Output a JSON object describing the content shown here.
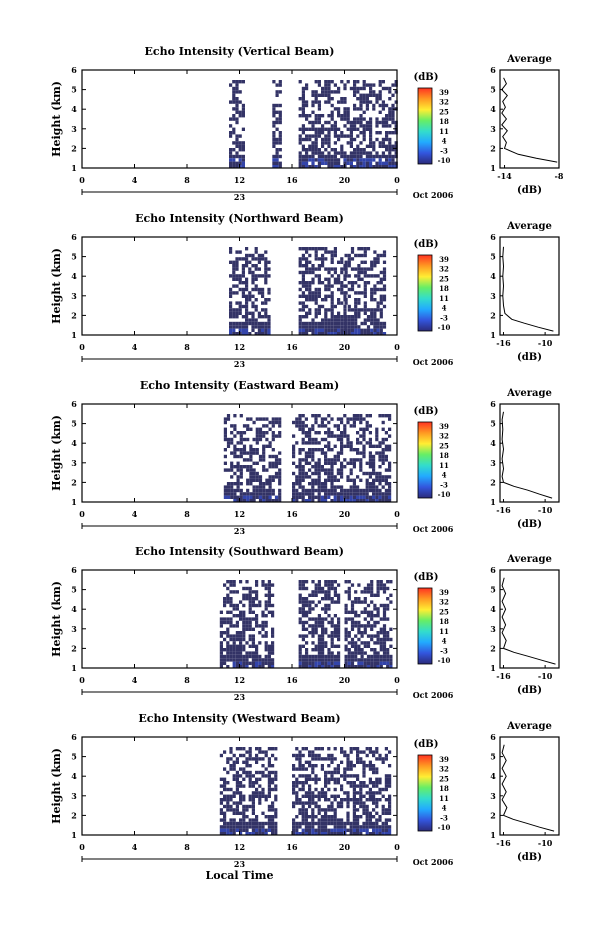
{
  "figure": {
    "x_label": "Local Time",
    "date_label": "Oct 2006",
    "date_day_label": "23",
    "colorbar_unit": "(dB)",
    "colorbar_ticks": [
      "39",
      "32",
      "25",
      "18",
      "11",
      "4",
      "-3",
      "-10"
    ],
    "colors": {
      "echo": "#333366",
      "echo_strong": "#3344aa",
      "frame": "#000000",
      "colorbar_stops": [
        "#2b2b7a",
        "#3355dd",
        "#22aaff",
        "#33ddcc",
        "#66ee66",
        "#ffee33",
        "#ff9922",
        "#ff3322"
      ]
    }
  },
  "chart_data": [
    {
      "type": "heatmap",
      "title": "Echo Intensity (Vertical Beam)",
      "ylabel": "Height (km)",
      "xlim": [
        0,
        24
      ],
      "ylim": [
        1,
        6
      ],
      "x_ticks": [
        "0",
        "4",
        "8",
        "12",
        "16",
        "20",
        "0"
      ],
      "y_ticks": [
        "1",
        "2",
        "3",
        "4",
        "5",
        "6"
      ],
      "echo_time_ranges": [
        [
          11.2,
          12.2
        ],
        [
          14.5,
          15.0
        ],
        [
          16.5,
          24.0
        ]
      ],
      "profile": {
        "title": "Average",
        "xlabel": "(dB)",
        "x_ticks": [
          "-14",
          "-8"
        ],
        "xlim": [
          -14.5,
          -8
        ],
        "ylim": [
          1,
          6
        ],
        "y_ticks": [
          "1",
          "2",
          "3",
          "4",
          "5",
          "6"
        ],
        "heights": [
          1.3,
          1.5,
          1.7,
          2.0,
          2.3,
          2.6,
          2.9,
          3.2,
          3.5,
          3.8,
          4.1,
          4.4,
          4.7,
          5.0,
          5.3,
          5.6
        ],
        "values": [
          -8.2,
          -10.5,
          -12.5,
          -14.0,
          -13.8,
          -14.2,
          -13.7,
          -14.3,
          -13.8,
          -14.3,
          -13.9,
          -14.2,
          -13.7,
          -14.3,
          -13.8,
          -14.1
        ]
      }
    },
    {
      "type": "heatmap",
      "title": "Echo Intensity (Northward Beam)",
      "ylabel": "Height (km)",
      "xlim": [
        0,
        24
      ],
      "ylim": [
        1,
        6
      ],
      "x_ticks": [
        "0",
        "4",
        "8",
        "12",
        "16",
        "20",
        "0"
      ],
      "y_ticks": [
        "1",
        "2",
        "3",
        "4",
        "5",
        "6"
      ],
      "echo_time_ranges": [
        [
          11.2,
          14.2
        ],
        [
          16.5,
          20.0
        ],
        [
          20.0,
          23.0
        ]
      ],
      "profile": {
        "title": "Average",
        "xlabel": "(dB)",
        "x_ticks": [
          "-16",
          "-10"
        ],
        "xlim": [
          -16.5,
          -8
        ],
        "ylim": [
          1,
          6
        ],
        "y_ticks": [
          "1",
          "2",
          "3",
          "4",
          "5",
          "6"
        ],
        "heights": [
          1.2,
          1.4,
          1.6,
          1.8,
          2.1,
          2.5,
          3.0,
          3.5,
          4.0,
          4.5,
          5.0,
          5.5
        ],
        "values": [
          -8.8,
          -11.0,
          -13.0,
          -14.8,
          -15.8,
          -16.0,
          -16.1,
          -16.0,
          -16.1,
          -16.0,
          -16.1,
          -16.0
        ]
      }
    },
    {
      "type": "heatmap",
      "title": "Echo Intensity (Eastward Beam)",
      "ylabel": "Height (km)",
      "xlim": [
        0,
        24
      ],
      "ylim": [
        1,
        6
      ],
      "x_ticks": [
        "0",
        "4",
        "8",
        "12",
        "16",
        "20",
        "0"
      ],
      "y_ticks": [
        "1",
        "2",
        "3",
        "4",
        "5",
        "6"
      ],
      "echo_time_ranges": [
        [
          10.8,
          15.0
        ],
        [
          16.0,
          23.5
        ]
      ],
      "profile": {
        "title": "Average",
        "xlabel": "(dB)",
        "x_ticks": [
          "-16",
          "-10"
        ],
        "xlim": [
          -16.5,
          -8
        ],
        "ylim": [
          1,
          6
        ],
        "y_ticks": [
          "1",
          "2",
          "3",
          "4",
          "5",
          "6"
        ],
        "heights": [
          1.2,
          1.4,
          1.6,
          1.8,
          2.0,
          2.3,
          2.7,
          3.2,
          3.7,
          4.2,
          4.7,
          5.2,
          5.6
        ],
        "values": [
          -9.0,
          -10.8,
          -12.5,
          -14.5,
          -16.0,
          -16.2,
          -16.0,
          -16.2,
          -16.0,
          -16.2,
          -16.1,
          -16.2,
          -16.0
        ]
      }
    },
    {
      "type": "heatmap",
      "title": "Echo Intensity (Southward Beam)",
      "ylabel": "Height (km)",
      "xlim": [
        0,
        24
      ],
      "ylim": [
        1,
        6
      ],
      "x_ticks": [
        "0",
        "4",
        "8",
        "12",
        "16",
        "20",
        "0"
      ],
      "y_ticks": [
        "1",
        "2",
        "3",
        "4",
        "5",
        "6"
      ],
      "echo_time_ranges": [
        [
          10.5,
          14.5
        ],
        [
          16.5,
          19.5
        ],
        [
          20.0,
          23.5
        ]
      ],
      "profile": {
        "title": "Average",
        "xlabel": "(dB)",
        "x_ticks": [
          "-16",
          "-10"
        ],
        "xlim": [
          -16.5,
          -8
        ],
        "ylim": [
          1,
          6
        ],
        "y_ticks": [
          "1",
          "2",
          "3",
          "4",
          "5",
          "6"
        ],
        "heights": [
          1.2,
          1.4,
          1.6,
          1.8,
          2.0,
          2.4,
          2.8,
          3.2,
          3.6,
          4.0,
          4.4,
          4.8,
          5.2,
          5.6
        ],
        "values": [
          -8.5,
          -10.5,
          -12.5,
          -14.5,
          -16.0,
          -15.6,
          -16.2,
          -15.7,
          -16.2,
          -15.7,
          -16.2,
          -15.7,
          -16.2,
          -15.9
        ]
      }
    },
    {
      "type": "heatmap",
      "title": "Echo Intensity (Westward Beam)",
      "ylabel": "Height (km)",
      "xlim": [
        0,
        24
      ],
      "ylim": [
        1,
        6
      ],
      "x_ticks": [
        "0",
        "4",
        "8",
        "12",
        "16",
        "20",
        "0"
      ],
      "y_ticks": [
        "1",
        "2",
        "3",
        "4",
        "5",
        "6"
      ],
      "echo_time_ranges": [
        [
          10.5,
          14.8
        ],
        [
          16.0,
          23.5
        ]
      ],
      "profile": {
        "title": "Average",
        "xlabel": "(dB)",
        "x_ticks": [
          "-16",
          "-10"
        ],
        "xlim": [
          -16.5,
          -8
        ],
        "ylim": [
          1,
          6
        ],
        "y_ticks": [
          "1",
          "2",
          "3",
          "4",
          "5",
          "6"
        ],
        "heights": [
          1.2,
          1.4,
          1.6,
          1.8,
          2.0,
          2.4,
          2.8,
          3.2,
          3.6,
          4.0,
          4.4,
          4.8,
          5.2,
          5.6
        ],
        "values": [
          -8.7,
          -10.8,
          -12.7,
          -14.6,
          -16.0,
          -15.5,
          -16.2,
          -15.6,
          -16.2,
          -15.6,
          -16.2,
          -15.6,
          -16.2,
          -15.9
        ]
      }
    }
  ]
}
